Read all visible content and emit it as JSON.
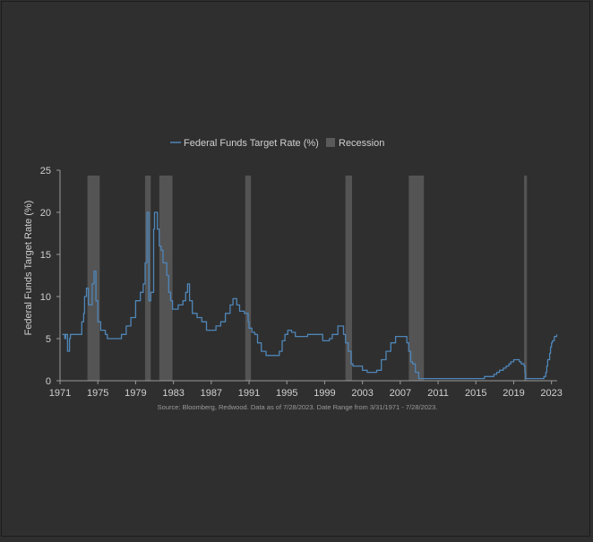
{
  "chart_data": {
    "type": "line",
    "title": "",
    "xlabel": "",
    "ylabel": "Federal Funds Target Rate (%)",
    "ylim": [
      0,
      25
    ],
    "xlim": [
      1971,
      2023.6
    ],
    "grid": false,
    "legend_position": "top-center",
    "y_ticks": [
      "0",
      "5",
      "10",
      "15",
      "20",
      "25"
    ],
    "x_ticks": [
      "1971",
      "1975",
      "1979",
      "1983",
      "1987",
      "1991",
      "1995",
      "1999",
      "2003",
      "2007",
      "2011",
      "2015",
      "2019",
      "2023"
    ],
    "series": [
      {
        "name": "Federal Funds Target Rate (%)",
        "color": "#4f86b8",
        "x": [
          1971.25,
          1971.5,
          1971.6,
          1971.8,
          1972.0,
          1972.1,
          1972.5,
          1973.0,
          1973.3,
          1973.5,
          1973.6,
          1973.8,
          1974.0,
          1974.2,
          1974.4,
          1974.6,
          1974.8,
          1975.0,
          1975.3,
          1975.5,
          1975.8,
          1976.0,
          1976.5,
          1977.0,
          1977.5,
          1978.0,
          1978.5,
          1979.0,
          1979.5,
          1979.8,
          1980.0,
          1980.2,
          1980.4,
          1980.6,
          1980.9,
          1981.0,
          1981.3,
          1981.5,
          1981.7,
          1981.9,
          1982.0,
          1982.3,
          1982.5,
          1982.7,
          1982.9,
          1983.0,
          1983.5,
          1984.0,
          1984.3,
          1984.5,
          1984.7,
          1985.0,
          1985.5,
          1986.0,
          1986.5,
          1987.0,
          1987.5,
          1988.0,
          1988.5,
          1989.0,
          1989.3,
          1989.7,
          1990.0,
          1990.5,
          1990.9,
          1991.0,
          1991.3,
          1991.6,
          1991.9,
          1992.3,
          1992.8,
          1993.0,
          1994.0,
          1994.2,
          1994.5,
          1994.8,
          1995.1,
          1995.5,
          1995.9,
          1996.1,
          1997.2,
          1998.0,
          1998.8,
          1999.0,
          1999.5,
          1999.8,
          2000.0,
          2000.4,
          2000.9,
          2001.0,
          2001.2,
          2001.5,
          2001.8,
          2002.0,
          2002.8,
          2003.0,
          2003.5,
          2004.0,
          2004.5,
          2005.0,
          2005.5,
          2006.0,
          2006.5,
          2007.0,
          2007.5,
          2007.7,
          2007.9,
          2008.1,
          2008.3,
          2008.6,
          2008.95,
          2009.0,
          2015.0,
          2015.9,
          2016.5,
          2016.9,
          2017.2,
          2017.5,
          2017.9,
          2018.2,
          2018.5,
          2018.7,
          2019.0,
          2019.5,
          2019.6,
          2019.8,
          2020.1,
          2020.2,
          2020.25,
          2022.0,
          2022.2,
          2022.4,
          2022.5,
          2022.6,
          2022.8,
          2022.9,
          2023.0,
          2023.1,
          2023.3,
          2023.55
        ],
        "values": [
          5.5,
          5.0,
          5.5,
          3.5,
          5.0,
          5.5,
          5.5,
          5.5,
          7.0,
          8.0,
          10.0,
          11.0,
          9.0,
          9.0,
          11.5,
          13.0,
          9.5,
          7.0,
          6.0,
          6.0,
          5.5,
          5.0,
          5.0,
          5.0,
          5.5,
          6.5,
          7.5,
          9.5,
          10.5,
          11.5,
          14.0,
          20.0,
          9.5,
          10.5,
          18.0,
          20.0,
          18.0,
          16.0,
          15.5,
          14.0,
          14.0,
          12.5,
          10.5,
          9.5,
          8.5,
          8.5,
          9.0,
          9.5,
          10.5,
          11.5,
          9.5,
          8.0,
          7.5,
          7.0,
          6.0,
          6.0,
          6.5,
          7.0,
          8.0,
          9.0,
          9.75,
          9.0,
          8.25,
          8.0,
          7.0,
          6.25,
          5.75,
          5.5,
          4.5,
          3.5,
          3.0,
          3.0,
          3.0,
          3.5,
          4.75,
          5.5,
          6.0,
          5.75,
          5.25,
          5.25,
          5.5,
          5.5,
          4.75,
          4.75,
          5.0,
          5.5,
          5.5,
          6.5,
          6.5,
          5.5,
          4.5,
          3.5,
          2.0,
          1.75,
          1.75,
          1.25,
          1.0,
          1.0,
          1.25,
          2.5,
          3.5,
          4.5,
          5.25,
          5.25,
          5.25,
          4.5,
          3.5,
          2.25,
          2.0,
          1.0,
          0.25,
          0.25,
          0.25,
          0.5,
          0.5,
          0.75,
          1.0,
          1.25,
          1.5,
          1.75,
          2.0,
          2.25,
          2.5,
          2.5,
          2.25,
          2.0,
          1.75,
          1.0,
          0.25,
          0.25,
          0.5,
          1.0,
          1.75,
          2.5,
          3.25,
          4.0,
          4.5,
          4.75,
          5.25,
          5.5
        ]
      },
      {
        "name": "Recession",
        "color": "#5a5a5a",
        "periods": [
          [
            1973.9,
            1975.2
          ],
          [
            1980.0,
            1980.6
          ],
          [
            1981.5,
            1982.9
          ],
          [
            1990.6,
            1991.2
          ],
          [
            2001.2,
            2001.9
          ],
          [
            2007.9,
            2009.5
          ],
          [
            2020.1,
            2020.4
          ]
        ]
      }
    ],
    "source_note": "Source: Bloomberg, Redwood. Data as of 7/28/2023. Date Range from 3/31/1971 - 7/28/2023."
  }
}
